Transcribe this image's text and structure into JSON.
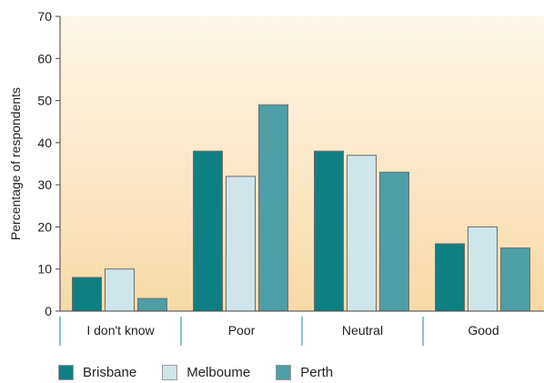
{
  "chart_data": {
    "type": "bar",
    "title": "",
    "xlabel": "",
    "ylabel": "Percentage of respondents",
    "ylim": [
      0,
      70
    ],
    "yticks": [
      0,
      10,
      20,
      30,
      40,
      50,
      60,
      70
    ],
    "categories": [
      "I don't know",
      "Poor",
      "Neutral",
      "Good"
    ],
    "series": [
      {
        "name": "Brisbane",
        "color": "#0e7f82",
        "values": [
          8,
          38,
          38,
          16
        ]
      },
      {
        "name": "Melboume",
        "color": "#cfe5ea",
        "values": [
          10,
          32,
          37,
          20
        ]
      },
      {
        "name": "Perth",
        "color": "#4e9ea6",
        "values": [
          3,
          49,
          33,
          15
        ]
      }
    ],
    "legend_position": "bottom-left",
    "grid": false,
    "background_gradient": [
      "#fdf7ea",
      "#f8d9a6"
    ]
  }
}
